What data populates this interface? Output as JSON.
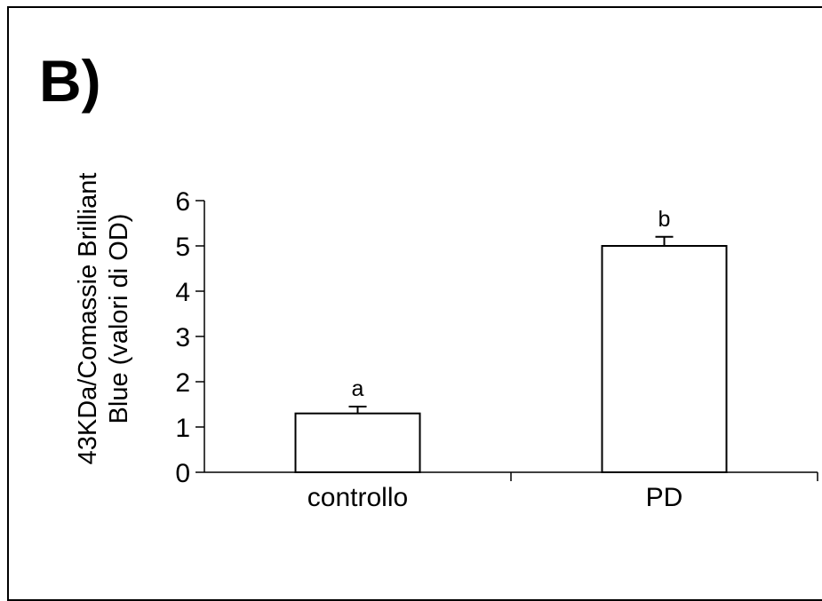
{
  "panel_label": "B)",
  "chart_data": {
    "type": "bar",
    "categories": [
      "controllo",
      "PD"
    ],
    "values": [
      1.3,
      5.0
    ],
    "errors": [
      0.15,
      0.2
    ],
    "significance": [
      "a",
      "b"
    ],
    "title": "",
    "xlabel": "",
    "ylabel_line1": "43KDa/Comassie Brilliant",
    "ylabel_line2": "Blue (valori di OD)",
    "ylim": [
      0,
      6
    ],
    "yticks": [
      0,
      1,
      2,
      3,
      4,
      5,
      6
    ],
    "grid": false,
    "legend": "none",
    "bar_color": "#ffffff",
    "edge_color": "#000000"
  }
}
